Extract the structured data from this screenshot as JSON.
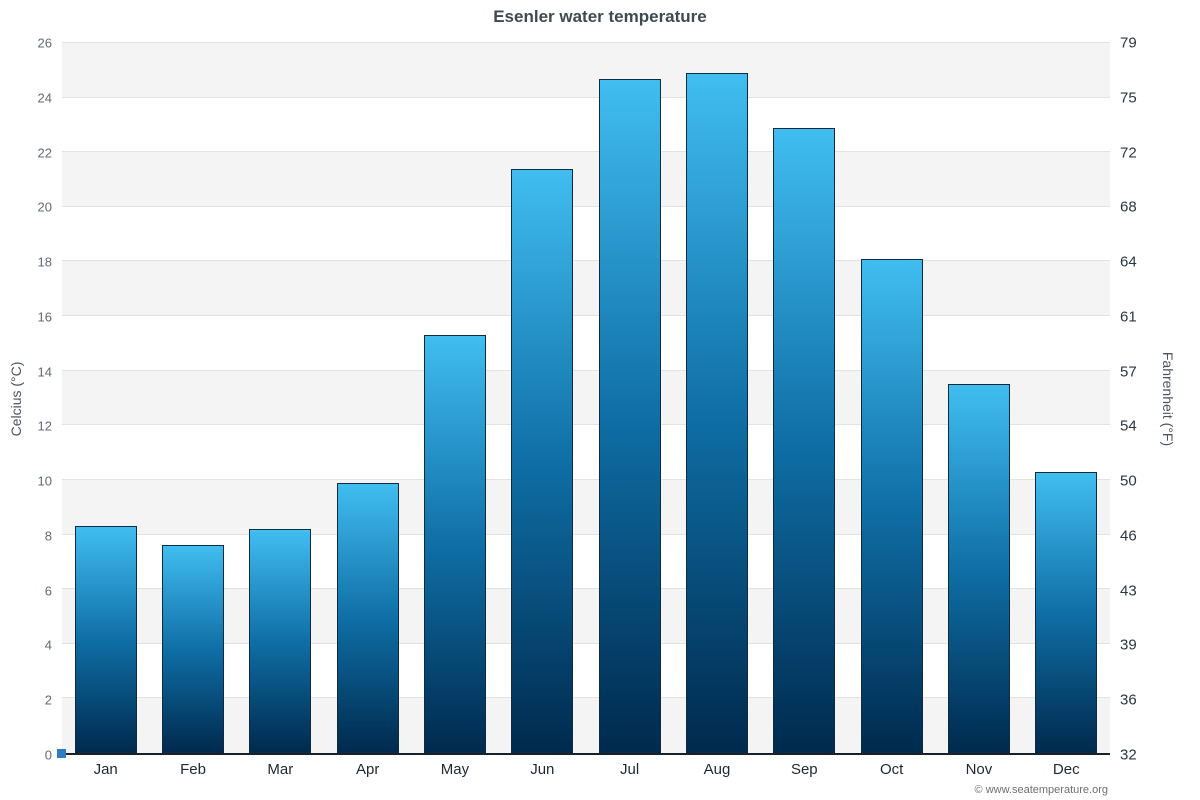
{
  "page": {
    "title": "Esenler water temperature",
    "footer": "© www.seatemperature.org"
  },
  "chart_data": {
    "type": "bar",
    "title": "Esenler water temperature",
    "categories": [
      "Jan",
      "Feb",
      "Mar",
      "Apr",
      "May",
      "Jun",
      "Jul",
      "Aug",
      "Sep",
      "Oct",
      "Nov",
      "Dec"
    ],
    "values": [
      8.3,
      7.6,
      8.2,
      9.9,
      15.3,
      21.4,
      24.7,
      24.9,
      22.9,
      18.1,
      13.5,
      10.3
    ],
    "xlabel": "",
    "ylabel_left": "Celcius (°C)",
    "ylabel_right": "Fahrenheit (°F)",
    "ylim": [
      0,
      26
    ],
    "y_left_ticks": [
      0,
      2,
      4,
      6,
      8,
      10,
      12,
      14,
      16,
      18,
      20,
      22,
      24,
      26
    ],
    "y_right_ticks": [
      32,
      36,
      39,
      43,
      46,
      50,
      54,
      57,
      61,
      64,
      68,
      72,
      75,
      79
    ],
    "grid": true,
    "legend": false,
    "colors": {
      "bar_top": "#41bdf0",
      "bar_mid": "#0f6fa6",
      "bar_bottom": "#002a4e",
      "bar_border": "#102a40",
      "axis_line": "#16222c",
      "origin_marker": "#2e7cc3",
      "title_color": "#3e4a52"
    }
  }
}
